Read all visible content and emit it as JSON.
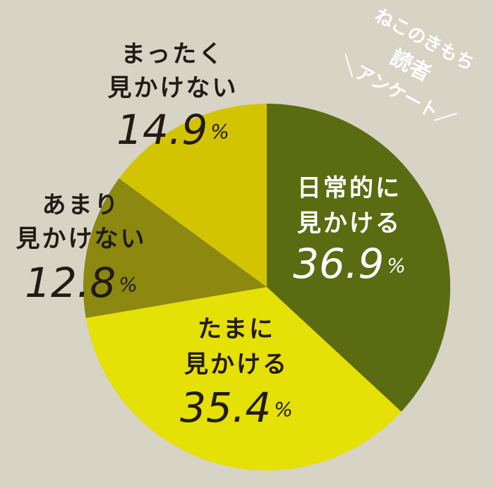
{
  "chart_data": {
    "type": "pie",
    "categories": [
      "日常的に\n見かける",
      "たまに\n見かける",
      "あまり\n見かけない",
      "まったく\n見かけない"
    ],
    "values": [
      36.9,
      35.4,
      12.8,
      14.9
    ],
    "value_labels": [
      "36.9%",
      "35.4%",
      "12.8%",
      "14.9%"
    ],
    "colors": [
      "#5b6b12",
      "#e5e005",
      "#8c8810",
      "#d3c402"
    ],
    "annotation": [
      "ねこのきもち",
      "読者",
      "＼アンケート／"
    ]
  }
}
